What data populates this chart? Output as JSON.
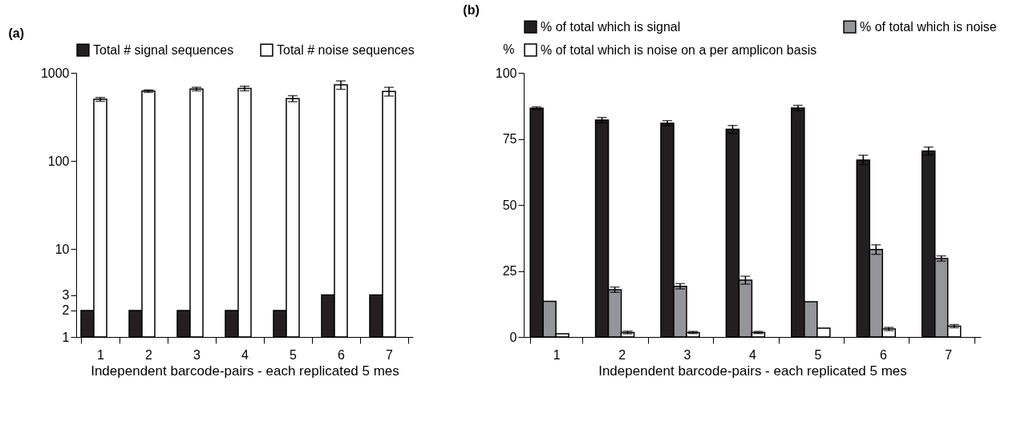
{
  "chart_data": [
    {
      "type": "bar",
      "title": "(a)",
      "xlabel": "Independent barcode-pairs - each replicated 5 mes",
      "categories": [
        "1",
        "2",
        "3",
        "4",
        "5",
        "6",
        "7"
      ],
      "log": true,
      "ylim": [
        1,
        1000
      ],
      "yticks": [
        1,
        2,
        3,
        10,
        100,
        1000
      ],
      "grid": false,
      "legend": "top",
      "series": [
        {
          "name": "Total # signal sequences",
          "color": "#231f20",
          "values": [
            2,
            2,
            2,
            2,
            2,
            3,
            3
          ]
        },
        {
          "name": "Total # noise sequences",
          "color": "#ffffff",
          "values": [
            500,
            620,
            655,
            665,
            510,
            730,
            615
          ],
          "errors": [
            25,
            20,
            30,
            40,
            40,
            80,
            70
          ]
        }
      ]
    },
    {
      "type": "bar",
      "title": "(b)",
      "xlabel": "Independent barcode-pairs - each replicated 5 mes",
      "ylabel": "%",
      "categories": [
        "1",
        "2",
        "3",
        "4",
        "5",
        "6",
        "7"
      ],
      "ylim": [
        0,
        100
      ],
      "yticks": [
        0,
        25,
        50,
        75,
        100
      ],
      "grid": false,
      "legend": "top",
      "series": [
        {
          "name": "% of total which is signal",
          "color": "#231f20",
          "values": [
            86.6,
            82.1,
            80.9,
            78.6,
            86.7,
            67.0,
            70.4
          ],
          "errors": [
            0.5,
            1,
            1,
            1.5,
            1,
            1.8,
            1.5
          ]
        },
        {
          "name": "% of total which is noise",
          "color": "#939598",
          "values": [
            13.5,
            17.9,
            19.2,
            21.5,
            13.3,
            33.1,
            29.7
          ],
          "errors": [
            null,
            1,
            1,
            1.5,
            null,
            1.8,
            1
          ]
        },
        {
          "name": "% of total which is noise on a per amplicon basis",
          "color": "#ffffff",
          "values": [
            1.2,
            1.7,
            1.7,
            1.7,
            3.3,
            3.0,
            4.1
          ],
          "errors": [
            null,
            0.5,
            0.4,
            0.4,
            null,
            0.6,
            0.6
          ]
        }
      ]
    }
  ]
}
